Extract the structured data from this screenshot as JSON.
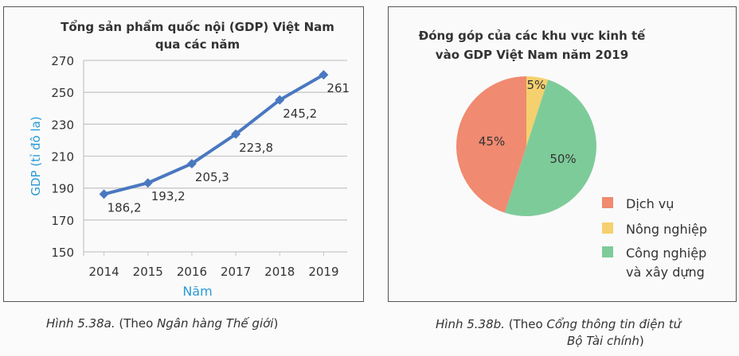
{
  "chart_data": [
    {
      "type": "line",
      "title": "Tổng sản phẩm quốc nội (GDP) Việt Nam qua các năm",
      "title_lines": [
        "Tổng sản phẩm quốc nội (GDP) Việt Nam",
        "qua các năm"
      ],
      "xlabel": "Năm",
      "ylabel": "GDP (tỉ đô la)",
      "categories": [
        "2014",
        "2015",
        "2016",
        "2017",
        "2018",
        "2019"
      ],
      "values": [
        186.2,
        193.2,
        205.3,
        223.8,
        245.2,
        261
      ],
      "data_labels": [
        "186,2",
        "193,2",
        "205,3",
        "223,8",
        "245,2",
        "261"
      ],
      "ylim": [
        150,
        270
      ],
      "yticks": [
        "150",
        "170",
        "190",
        "210",
        "230",
        "250",
        "270"
      ],
      "grid": true,
      "color": "#4a78c0",
      "axis_label_color": "#2a9ad6"
    },
    {
      "type": "pie",
      "title": "Đóng góp của các khu vực kinh tế vào GDP Việt Nam năm 2019",
      "title_lines": [
        "Đóng góp của các khu vực kinh tế",
        "vào GDP Việt Nam năm 2019"
      ],
      "slices": [
        {
          "label": "Nông nghiệp",
          "value": 5,
          "text": "5%",
          "color": "#f5d06e"
        },
        {
          "label": "Công nghiệp và xây dựng",
          "value": 50,
          "text": "50%",
          "color": "#7ecb9a"
        },
        {
          "label": "Dịch vụ",
          "value": 45,
          "text": "45%",
          "color": "#f08a70"
        }
      ],
      "legend": [
        {
          "label": "Dịch vụ",
          "color": "#f08a70"
        },
        {
          "label": "Nông nghiệp",
          "color": "#f5d06e"
        },
        {
          "label_lines": [
            "Công nghiệp",
            "và xây dựng"
          ],
          "color": "#7ecb9a"
        }
      ],
      "legend_position": "bottom-right"
    }
  ],
  "captions": {
    "left": {
      "fig": "Hình 5.38a.",
      "open": " (Theo ",
      "source": "Ngân hàng Thế giới",
      "close": ")"
    },
    "right": {
      "fig": "Hình 5.38b.",
      "open": " (Theo ",
      "source1": "Cổng thông tin điện tử",
      "source2": "Bộ Tài chính",
      "close": ")"
    }
  }
}
